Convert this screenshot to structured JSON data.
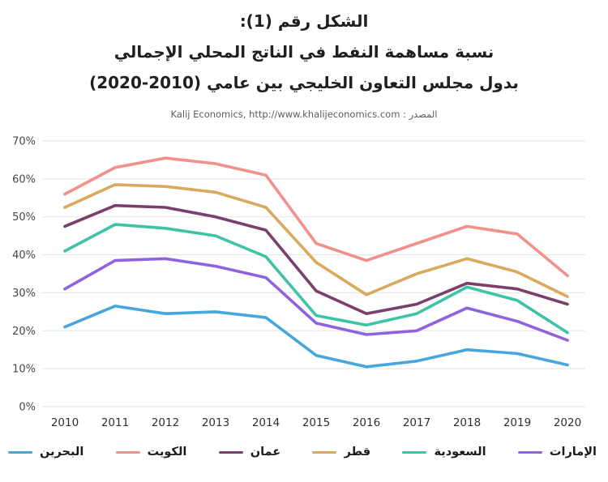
{
  "title": {
    "line1": "الشكل رقم (1):",
    "line2": "نسبة مساهمة النفط في الناتج المحلي الإجمالي",
    "line3": "بدول مجلس التعاون الخليجي بين عامي (2010-2020)"
  },
  "source": "المصدر : Kalij Economics, http://www.khalijeconomics.com",
  "chart_data": {
    "type": "line",
    "x": [
      "2010",
      "2011",
      "2012",
      "2013",
      "2014",
      "2015",
      "2016",
      "2017",
      "2018",
      "2019",
      "2020"
    ],
    "series": [
      {
        "id": "bahrain",
        "name": "البحرين",
        "color": "#47a6dd",
        "values": [
          21,
          26.5,
          24.5,
          25,
          23.5,
          13.5,
          10.5,
          12,
          15,
          14,
          11
        ]
      },
      {
        "id": "kuwait",
        "name": "الكويت",
        "color": "#f2908c",
        "values": [
          56,
          63,
          65.5,
          64,
          61,
          43,
          38.5,
          43,
          47.5,
          45.5,
          34.5
        ]
      },
      {
        "id": "oman",
        "name": "عمان",
        "color": "#7a3f6d",
        "values": [
          47.5,
          53,
          52.5,
          50,
          46.5,
          30.5,
          24.5,
          27,
          32.5,
          31,
          27
        ]
      },
      {
        "id": "qatar",
        "name": "قطر",
        "color": "#d9a95c",
        "values": [
          52.5,
          58.5,
          58,
          56.5,
          52.5,
          38,
          29.5,
          35,
          39,
          35.5,
          29
        ]
      },
      {
        "id": "saudi-arabia",
        "name": "السعودية",
        "color": "#3ec3a6",
        "values": [
          41,
          48,
          47,
          45,
          39.5,
          24,
          21.5,
          24.5,
          31.5,
          28,
          19.5
        ]
      },
      {
        "id": "uae",
        "name": "الإمارات",
        "color": "#8f63e0",
        "values": [
          31,
          38.5,
          39,
          37,
          34,
          22,
          19,
          20,
          26,
          22.5,
          17.5
        ]
      }
    ],
    "yticks": [
      "0%",
      "10%",
      "20%",
      "30%",
      "40%",
      "50%",
      "60%",
      "70%"
    ],
    "ylim": [
      0,
      70
    ],
    "xlabel": "",
    "ylabel": "",
    "grid": "horizontal",
    "legend_position": "bottom"
  }
}
